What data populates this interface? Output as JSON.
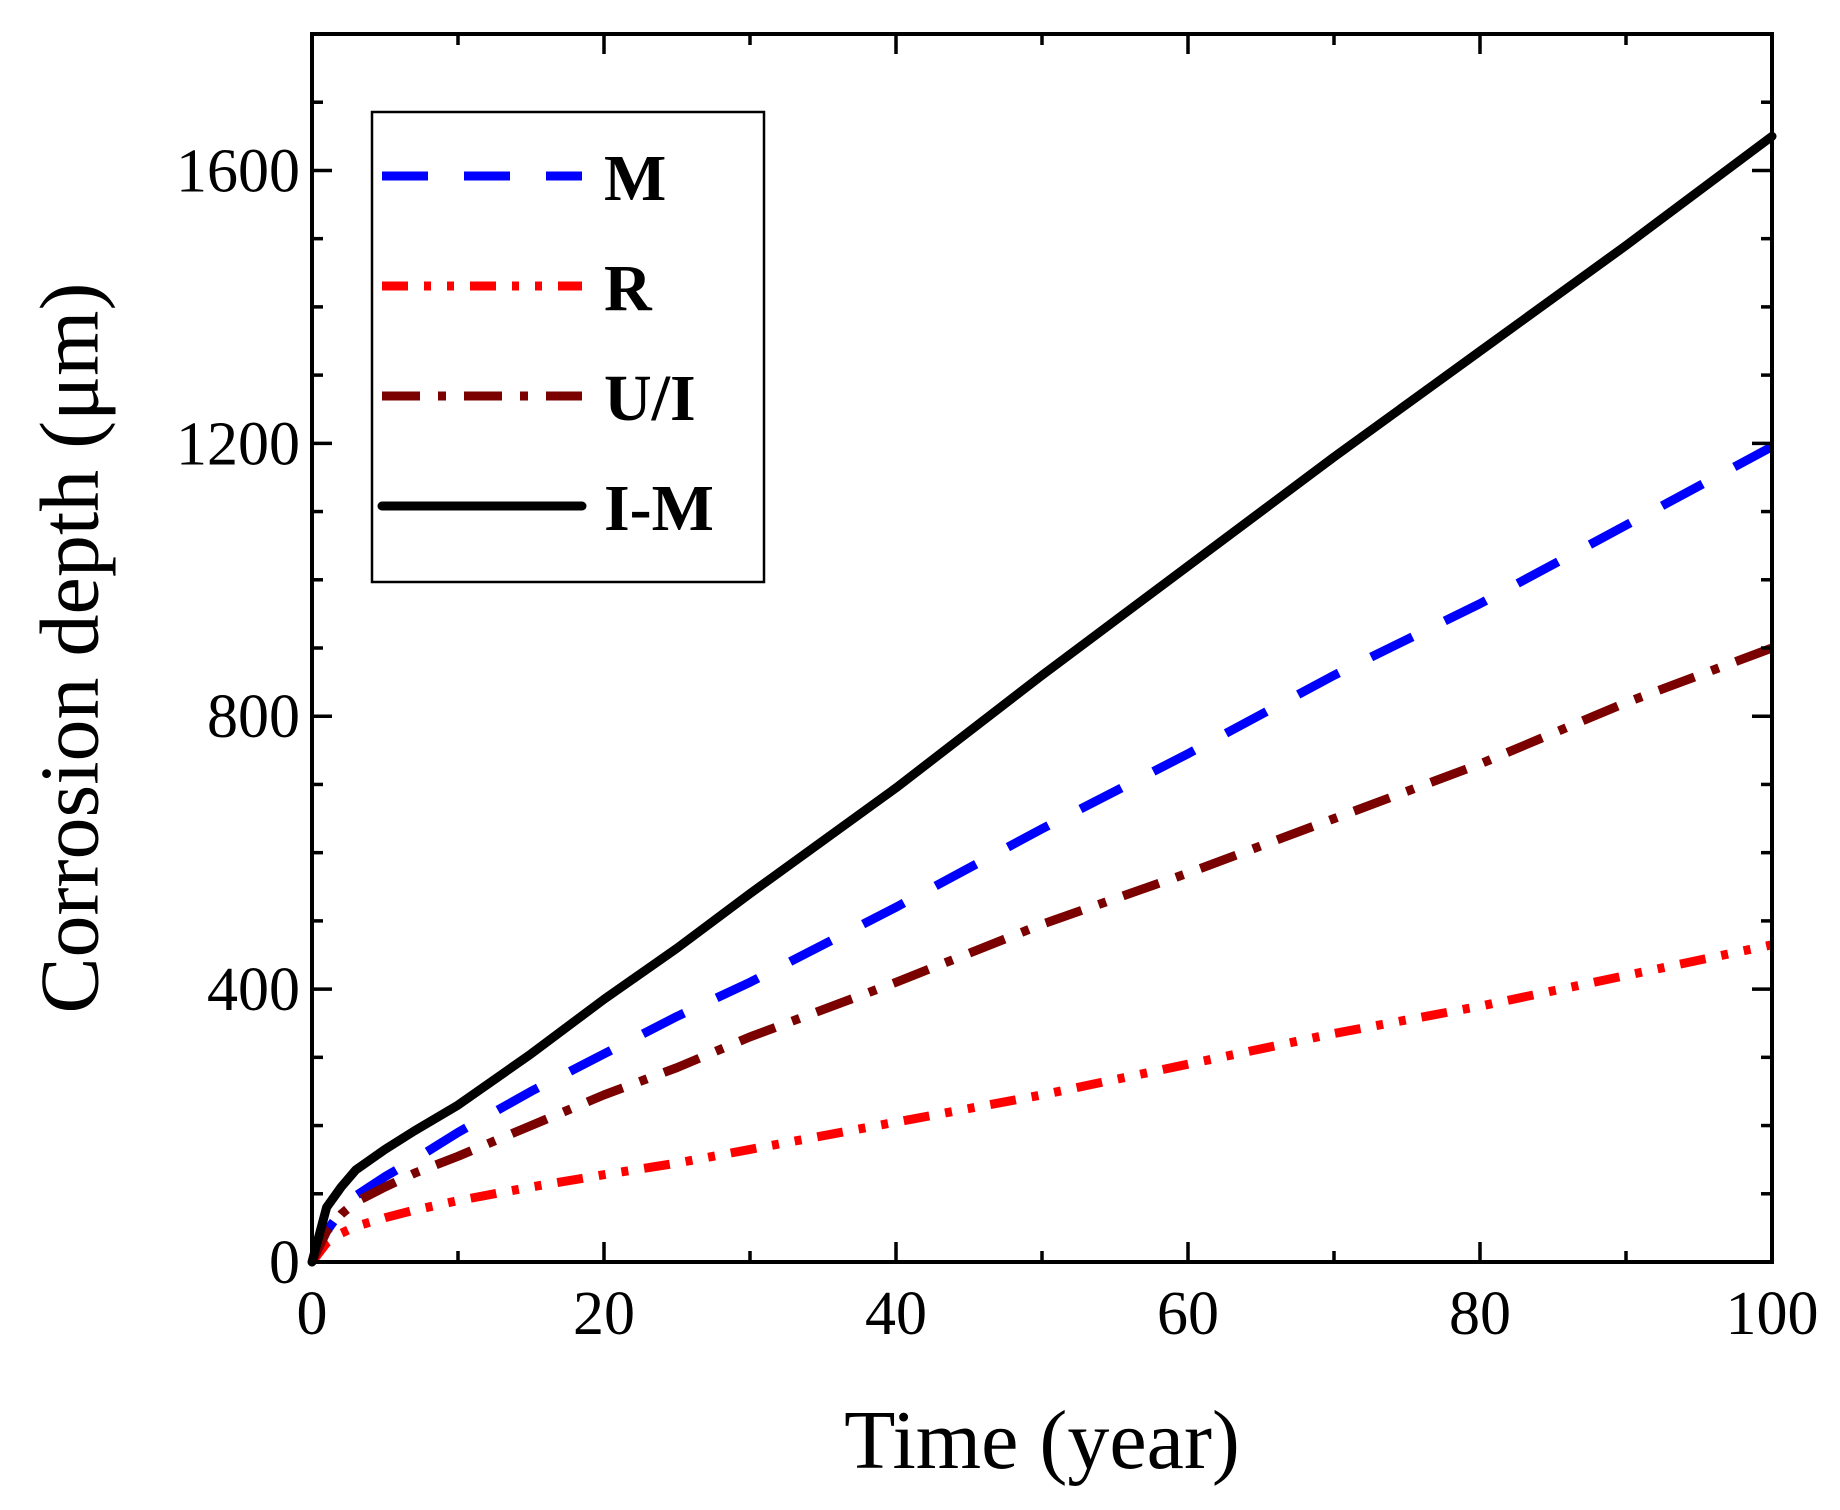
{
  "chart_data": {
    "type": "line",
    "xlabel": "Time (year)",
    "ylabel": "Corrosion depth (μm)",
    "xlim": [
      0,
      100
    ],
    "ylim": [
      0,
      1800
    ],
    "xticks": [
      0,
      20,
      40,
      60,
      80,
      100
    ],
    "xtick_labels": [
      "0",
      "20",
      "40",
      "60",
      "80",
      "100"
    ],
    "yticks": [
      0,
      400,
      800,
      1200,
      1600
    ],
    "ytick_labels": [
      "0",
      "400",
      "800",
      "1200",
      "1600"
    ],
    "grid": false,
    "legend_position": "top-left",
    "x": [
      0,
      1,
      2,
      3,
      5,
      7,
      10,
      15,
      20,
      25,
      30,
      40,
      50,
      60,
      70,
      80,
      90,
      100
    ],
    "series": [
      {
        "name": "M",
        "color": "#0000ff",
        "dash": "dashed",
        "values": [
          0,
          45,
          75,
          97,
          125,
          150,
          190,
          250,
          305,
          360,
          410,
          520,
          635,
          745,
          860,
          965,
          1080,
          1195
        ]
      },
      {
        "name": "R",
        "color": "#ff0000",
        "dash": "dash-dot-dot",
        "values": [
          0,
          28,
          42,
          52,
          65,
          76,
          90,
          110,
          128,
          145,
          165,
          205,
          245,
          290,
          335,
          375,
          420,
          465
        ]
      },
      {
        "name": "U/I",
        "color": "#7b0000",
        "dash": "dash-dot",
        "values": [
          0,
          45,
          70,
          88,
          110,
          130,
          155,
          200,
          245,
          285,
          330,
          410,
          495,
          570,
          650,
          730,
          820,
          900
        ]
      },
      {
        "name": "I-M",
        "color": "#000000",
        "dash": "solid",
        "values": [
          0,
          80,
          110,
          135,
          165,
          192,
          230,
          305,
          385,
          460,
          540,
          695,
          860,
          1020,
          1180,
          1335,
          1490,
          1650
        ]
      }
    ]
  }
}
